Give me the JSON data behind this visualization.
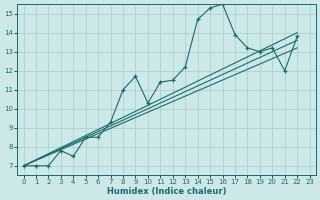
{
  "xlabel": "Humidex (Indice chaleur)",
  "background_color": "#cce8e8",
  "grid_color": "#aacccc",
  "line_color": "#1a6b6b",
  "xlim": [
    -0.5,
    23.5
  ],
  "ylim": [
    6.5,
    15.5
  ],
  "yticks": [
    7,
    8,
    9,
    10,
    11,
    12,
    13,
    14,
    15
  ],
  "xticks": [
    0,
    1,
    2,
    3,
    4,
    5,
    6,
    7,
    8,
    9,
    10,
    11,
    12,
    13,
    14,
    15,
    16,
    17,
    18,
    19,
    20,
    21,
    22,
    23
  ],
  "main_x": [
    0,
    1,
    2,
    3,
    4,
    5,
    6,
    7,
    8,
    9,
    10,
    11,
    12,
    13,
    14,
    15,
    16,
    17,
    18,
    19,
    20,
    21,
    22
  ],
  "main_y": [
    7.0,
    7.0,
    7.0,
    7.8,
    7.5,
    8.5,
    8.5,
    9.3,
    11.0,
    11.7,
    10.3,
    11.4,
    11.5,
    12.2,
    14.7,
    15.3,
    15.5,
    13.9,
    13.2,
    13.0,
    13.2,
    12.0,
    13.8
  ],
  "reg_lines": [
    {
      "x0": 0,
      "y0": 7.0,
      "x1": 22,
      "y1": 13.2
    },
    {
      "x0": 0,
      "y0": 7.0,
      "x1": 22,
      "y1": 13.6
    },
    {
      "x0": 0,
      "y0": 7.0,
      "x1": 22,
      "y1": 14.0
    }
  ]
}
